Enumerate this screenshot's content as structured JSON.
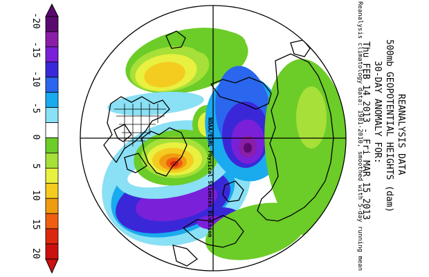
{
  "title_lines": [
    "REANALYSIS DATA",
    "500mb GEOPOTENTIAL HEIGHTS (dam)",
    "30-DAY ANOMALY FOR:",
    "Thu FEB 14 2013 - Fri MAR 15 2013"
  ],
  "footnote": "Reanalysis climatology data: 1981-2010, smoothed with 5-day running mean",
  "credit": "NOAA/ESRL Physical Sciences Division",
  "colorbar": {
    "labels": [
      "-20",
      "-15",
      "-10",
      "-5",
      "0",
      "5",
      "10",
      "15",
      "20"
    ],
    "colors": [
      "#5a0a6e",
      "#8a1ea8",
      "#7a20d8",
      "#3a28d8",
      "#2a66ee",
      "#1aaaee",
      "#8ae0f4",
      "#ffffff",
      "#6ccc28",
      "#a6e038",
      "#e8f040",
      "#f4cc20",
      "#f09c10",
      "#ee6010",
      "#dd2810",
      "#cc1010"
    ]
  },
  "map_colors": {
    "ocean_edge": "#000000",
    "negative_strong": "#5a0a6e",
    "negative": "#3a28d8",
    "positive": "#6ccc28",
    "positive_strong": "#dd2810"
  }
}
